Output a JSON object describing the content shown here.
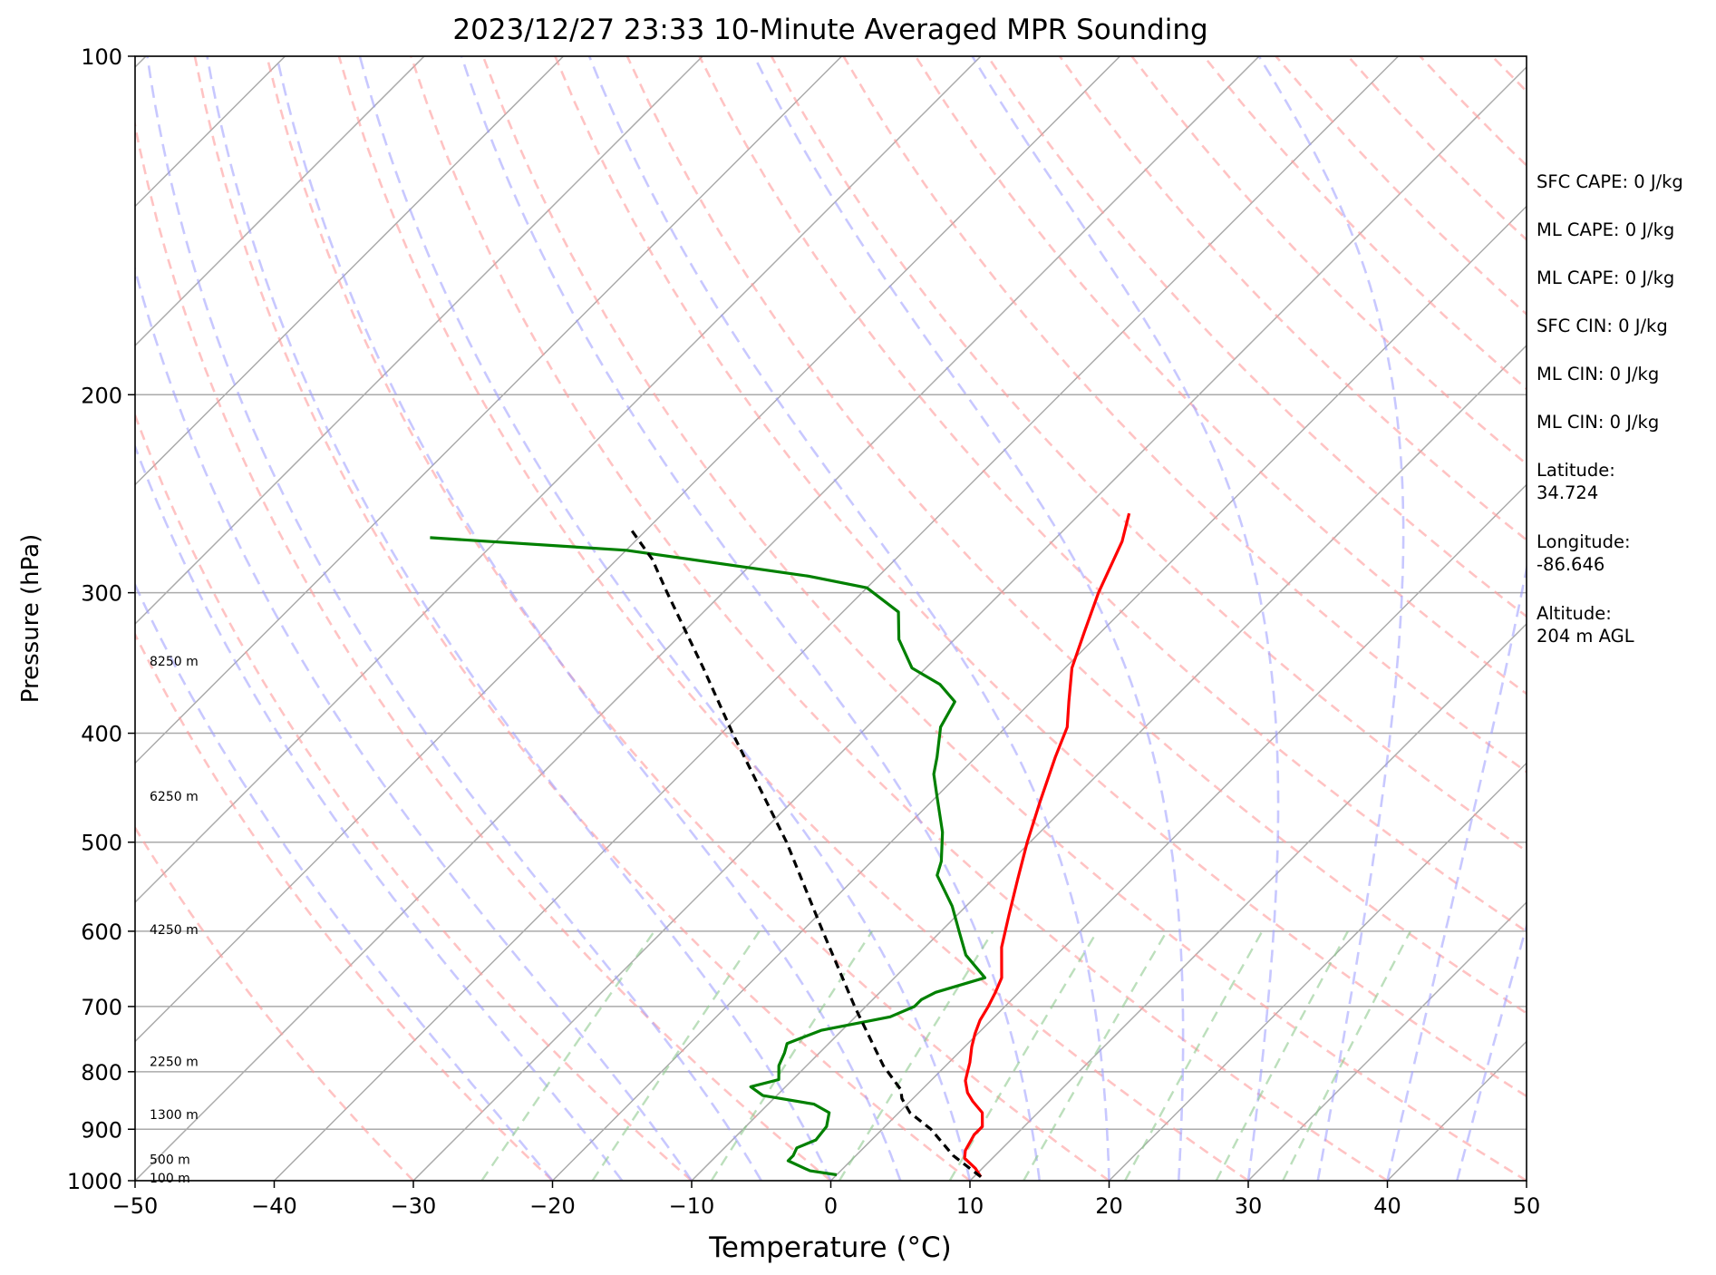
{
  "chart_data": {
    "type": "line",
    "title": "2023/12/27 23:33 10-Minute Averaged MPR Sounding",
    "xlabel": "Temperature (°C)",
    "ylabel": "Pressure (hPa)",
    "xlim": [
      -50,
      50
    ],
    "ylim": [
      1000,
      100
    ],
    "y_scale": "log",
    "x_ticks": [
      "−50",
      "−40",
      "−30",
      "−20",
      "−10",
      "0",
      "10",
      "20",
      "30",
      "40",
      "50"
    ],
    "y_ticks": [
      "100",
      "200",
      "300",
      "400",
      "500",
      "600",
      "700",
      "800",
      "900",
      "1000"
    ],
    "grid": true,
    "height_labels": [
      {
        "label": "8250 m",
        "pressure": 345
      },
      {
        "label": "6250 m",
        "pressure": 455
      },
      {
        "label": "4250 m",
        "pressure": 598
      },
      {
        "label": "2250 m",
        "pressure": 783
      },
      {
        "label": "1300 m",
        "pressure": 873
      },
      {
        "label": "500 m",
        "pressure": 957
      },
      {
        "label": "100 m",
        "pressure": 994
      }
    ],
    "series": [
      {
        "role": "temperature",
        "color": "#ff0000",
        "pressure": [
          992,
          975,
          955,
          940,
          910,
          895,
          870,
          850,
          835,
          815,
          800,
          785,
          760,
          740,
          720,
          700,
          680,
          660,
          620,
          580,
          540,
          500,
          460,
          420,
          395,
          375,
          350,
          325,
          300,
          270,
          255
        ],
        "temp": [
          10.5,
          9.5,
          8.0,
          7.5,
          7.0,
          7.0,
          6.0,
          4.5,
          3.5,
          2.5,
          2.0,
          1.5,
          0.5,
          -0.2,
          -0.8,
          -1.2,
          -1.7,
          -2.3,
          -4.5,
          -6.3,
          -8.2,
          -10.2,
          -12.2,
          -14.3,
          -15.6,
          -17.3,
          -19.5,
          -21.2,
          -23.0,
          -25.0,
          -26.5
        ]
      },
      {
        "role": "dewpoint",
        "color": "#008000",
        "pressure": [
          988,
          980,
          960,
          950,
          935,
          920,
          895,
          870,
          855,
          840,
          825,
          813,
          790,
          770,
          755,
          735,
          715,
          700,
          690,
          680,
          660,
          630,
          600,
          570,
          535,
          520,
          490,
          455,
          435,
          420,
          395,
          375,
          362,
          350,
          330,
          312,
          297,
          290,
          275,
          268
        ],
        "temp": [
          0.0,
          -2.2,
          -4.5,
          -4.5,
          -4.8,
          -4.0,
          -4.2,
          -5.0,
          -6.7,
          -11.0,
          -12.5,
          -11.0,
          -12.0,
          -12.5,
          -13.0,
          -11.5,
          -7.5,
          -6.5,
          -6.5,
          -6.0,
          -3.5,
          -6.5,
          -8.7,
          -11.0,
          -14.3,
          -15.0,
          -17.0,
          -20.0,
          -21.8,
          -22.8,
          -24.7,
          -25.5,
          -27.8,
          -31.0,
          -34.0,
          -36.0,
          -40.0,
          -45.0,
          -60.0,
          -75.0
        ]
      },
      {
        "role": "parcel",
        "color": "#000000",
        "pressure": [
          992,
          950,
          900,
          870,
          845,
          830,
          790,
          700,
          600,
          500,
          400,
          350,
          300,
          280,
          262
        ],
        "temp": [
          10.5,
          7.0,
          3.5,
          0.8,
          -0.8,
          -1.5,
          -4.5,
          -10.8,
          -18.5,
          -27.5,
          -39.2,
          -46.0,
          -54.0,
          -57.5,
          -61.5
        ]
      }
    ]
  },
  "side_panel": [
    "SFC CAPE: 0 J/kg",
    "ML CAPE: 0 J/kg",
    "ML CAPE: 0 J/kg",
    "SFC CIN: 0 J/kg",
    "ML CIN: 0 J/kg",
    "ML CIN: 0 J/kg",
    "Latitude:\n34.724",
    "Longitude:\n-86.646",
    "Altitude:\n204 m AGL"
  ]
}
